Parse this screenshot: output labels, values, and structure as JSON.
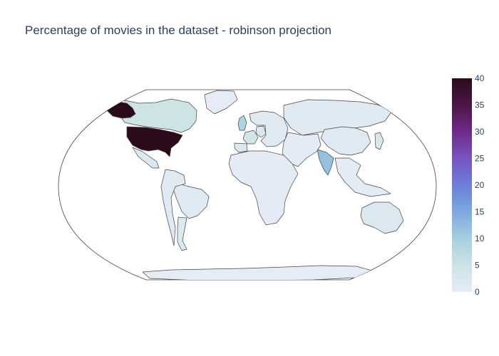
{
  "title": "Percentage of movies in the dataset - robinson projection",
  "colorscale": {
    "stops": [
      "#e5ecf6",
      "#cde3e6",
      "#a5cfe0",
      "#7ca9e0",
      "#6b7fd8",
      "#7854c0",
      "#6e2b8a",
      "#4d1547",
      "#2b0a1c"
    ],
    "min": 0,
    "max": 40,
    "ticks": [
      "0",
      "5",
      "10",
      "15",
      "20",
      "25",
      "30",
      "35",
      "40"
    ]
  },
  "chart_data": {
    "type": "choropleth",
    "projection": "robinson",
    "colorbar_range": [
      0,
      40
    ],
    "regions": [
      {
        "name": "United States",
        "value": 40
      },
      {
        "name": "India",
        "value": 12
      },
      {
        "name": "United Kingdom",
        "value": 9
      },
      {
        "name": "Canada",
        "value": 5
      },
      {
        "name": "France",
        "value": 4
      },
      {
        "name": "Japan",
        "value": 3
      },
      {
        "name": "Australia",
        "value": 2
      },
      {
        "name": "Mexico",
        "value": 2
      },
      {
        "name": "Argentina",
        "value": 2
      },
      {
        "name": "Spain",
        "value": 2
      },
      {
        "name": "Germany",
        "value": 2
      },
      {
        "name": "China",
        "value": 1.5
      },
      {
        "name": "Russia",
        "value": 1
      },
      {
        "name": "Brazil",
        "value": 1
      },
      {
        "name": "Europe (other)",
        "value": 1
      },
      {
        "name": "South America (other)",
        "value": 1
      },
      {
        "name": "Asia (other)",
        "value": 0.5
      },
      {
        "name": "Africa",
        "value": 0.3
      },
      {
        "name": "Antarctica",
        "value": 0
      },
      {
        "name": "Greenland",
        "value": 0
      }
    ]
  }
}
